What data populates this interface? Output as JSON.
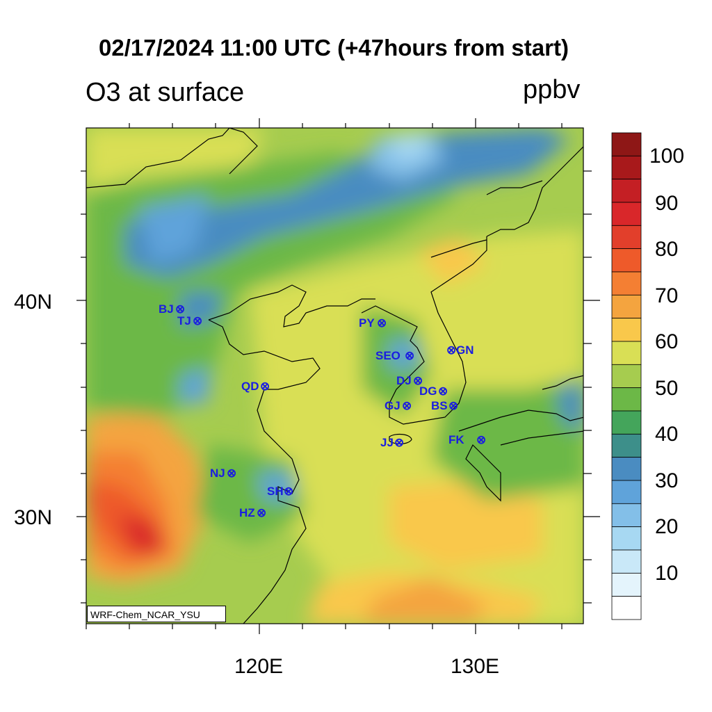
{
  "title": "02/17/2024 11:00 UTC (+47hours from start)",
  "left_title": "O3 at surface",
  "units": "ppbv",
  "credit": "WRF-Chem_NCAR_YSU",
  "map": {
    "lat_labels": [
      "40N",
      "30N"
    ],
    "lon_labels": [
      "120E",
      "130E"
    ]
  },
  "colorbar": {
    "labels": [
      "100",
      "90",
      "80",
      "70",
      "60",
      "50",
      "40",
      "30",
      "20",
      "10"
    ],
    "colors": [
      "#8e1716",
      "#a8191b",
      "#c41f24",
      "#d9272a",
      "#e23f2b",
      "#ee5a2a",
      "#f47f33",
      "#f4a43f",
      "#f9c84b",
      "#d9df55",
      "#a6cc4f",
      "#6cb847",
      "#44a55b",
      "#3d8f8a",
      "#4a8cc1",
      "#5fa3da",
      "#83bfe8",
      "#a7d8f2",
      "#c9e8f8",
      "#e4f4fc",
      "#ffffff"
    ]
  },
  "stations": [
    {
      "name": "BJ",
      "marker": "⊗"
    },
    {
      "name": "TJ",
      "marker": "⊗"
    },
    {
      "name": "QD",
      "marker": "⊗"
    },
    {
      "name": "NJ",
      "marker": "⊗"
    },
    {
      "name": "SH",
      "marker": "⊗"
    },
    {
      "name": "HZ",
      "marker": "⊗"
    },
    {
      "name": "PY",
      "marker": "⊗"
    },
    {
      "name": "SEO",
      "marker": "⊗"
    },
    {
      "name": "GN",
      "marker": "⊗"
    },
    {
      "name": "DJ",
      "marker": "⊗"
    },
    {
      "name": "DG",
      "marker": "⊗"
    },
    {
      "name": "GJ",
      "marker": "⊗"
    },
    {
      "name": "BS",
      "marker": "⊗"
    },
    {
      "name": "JJ",
      "marker": "⊗"
    },
    {
      "name": "FK",
      "marker": "⊗"
    }
  ]
}
